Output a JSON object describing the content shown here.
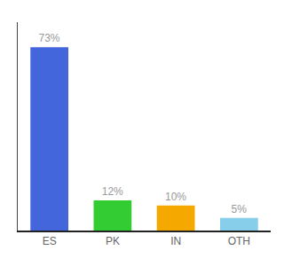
{
  "chart_data": {
    "type": "bar",
    "categories": [
      "ES",
      "PK",
      "IN",
      "OTH"
    ],
    "values": [
      73,
      12,
      10,
      5
    ],
    "value_labels": [
      "73%",
      "12%",
      "10%",
      "5%"
    ],
    "colors": [
      "#4466dd",
      "#33cc33",
      "#f5a800",
      "#87ceeb"
    ],
    "ylim": [
      0,
      83
    ],
    "grid": false,
    "data_labels": true,
    "tick_labels": "x"
  }
}
